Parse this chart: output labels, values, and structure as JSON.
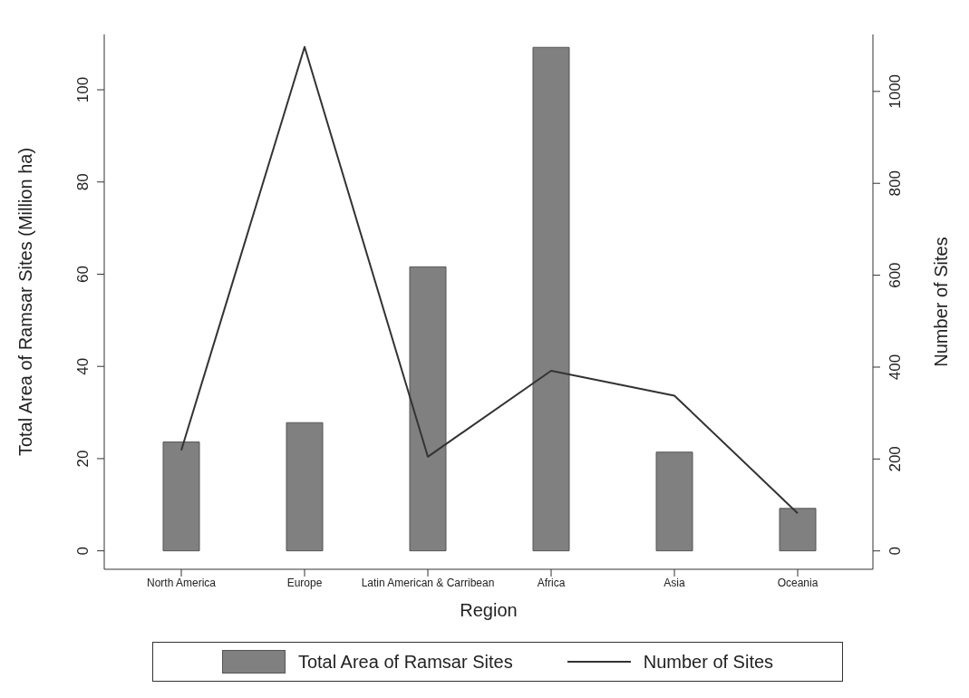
{
  "chart_data": {
    "type": "bar",
    "xlabel": "Region",
    "ylabel": "Total Area of Ramsar Sites (Million ha)",
    "y2label": "Number of Sites",
    "categories": [
      "North America",
      "Europe",
      "Latin American & Carribean",
      "Africa",
      "Asia",
      "Oceania"
    ],
    "series": [
      {
        "name": "Total Area of Ramsar Sites",
        "color": "#808080",
        "values": [
          23.6,
          27.8,
          61.6,
          109.2,
          21.4,
          9.2
        ]
      },
      {
        "name": "Number of Sites",
        "type": "line",
        "axis": "y2",
        "color": "#333333",
        "values": [
          219,
          1097,
          205,
          392,
          338,
          82
        ]
      }
    ],
    "ylim": [
      -4,
      112
    ],
    "yticks": [
      0,
      20,
      40,
      60,
      80,
      100
    ],
    "y2lim": [
      -40,
      1124
    ],
    "y2ticks": [
      0,
      200,
      400,
      600,
      800,
      1000
    ],
    "grid": false,
    "legend": "bottom",
    "marker": "none",
    "line_style": "solid"
  }
}
